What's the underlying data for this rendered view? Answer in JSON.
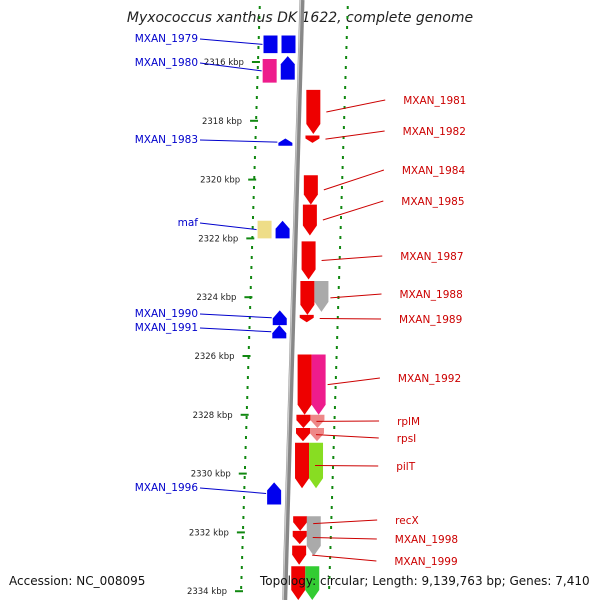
{
  "title": "Myxococcus xanthus DK 1622, complete genome",
  "footer": {
    "accession": "Accession: NC_008095",
    "topology": "Topology: circular; Length: 9,139,763 bp; Genes: 7,410"
  },
  "scale": {
    "unit": "kbp",
    "ticks": [
      {
        "kbp": 2316,
        "label": "2316 kbp"
      },
      {
        "kbp": 2318,
        "label": "2318 kbp"
      },
      {
        "kbp": 2320,
        "label": "2320 kbp"
      },
      {
        "kbp": 2322,
        "label": "2322 kbp"
      },
      {
        "kbp": 2324,
        "label": "2324 kbp"
      },
      {
        "kbp": 2326,
        "label": "2326 kbp"
      },
      {
        "kbp": 2328,
        "label": "2328 kbp"
      },
      {
        "kbp": 2330,
        "label": "2330 kbp"
      },
      {
        "kbp": 2332,
        "label": "2332 kbp"
      },
      {
        "kbp": 2334,
        "label": "2334 kbp"
      }
    ]
  },
  "colors": {
    "reverse_label": "#0000cc",
    "forward_label": "#cc0000",
    "backbone": "#888888",
    "dots": "#118811"
  },
  "genes_reverse": [
    {
      "name": "MXAN_1979",
      "start": 2315.1,
      "end": 2315.7,
      "color": "#0000ee",
      "shape": "box",
      "track": "outer"
    },
    {
      "name": "MXAN_1980",
      "start": 2315.9,
      "end": 2316.7,
      "color": "#ee1c8c",
      "shape": "box",
      "track": "outer"
    },
    {
      "name": "",
      "start": 2315.1,
      "end": 2315.7,
      "color": "#0000ee",
      "shape": "box",
      "track": "inner"
    },
    {
      "name": "",
      "start": 2315.8,
      "end": 2316.6,
      "color": "#0000ee",
      "shape": "arrow",
      "track": "inner"
    },
    {
      "name": "MXAN_1983",
      "start": 2318.6,
      "end": 2318.85,
      "color": "#0000ee",
      "shape": "arrow",
      "track": "inner"
    },
    {
      "name": "maf",
      "start": 2321.4,
      "end": 2322.0,
      "color": "#eedd88",
      "shape": "box",
      "track": "outer"
    },
    {
      "name": "",
      "start": 2321.4,
      "end": 2322.0,
      "color": "#0000ee",
      "shape": "arrow",
      "track": "inner"
    },
    {
      "name": "MXAN_1990",
      "start": 2324.45,
      "end": 2324.95,
      "color": "#0000ee",
      "shape": "arrow",
      "track": "inner"
    },
    {
      "name": "MXAN_1991",
      "start": 2324.95,
      "end": 2325.4,
      "color": "#0000ee",
      "shape": "arrow",
      "track": "inner"
    },
    {
      "name": "MXAN_1996",
      "start": 2330.3,
      "end": 2331.05,
      "color": "#0000ee",
      "shape": "arrow",
      "track": "inner"
    }
  ],
  "genes_forward": [
    {
      "name": "MXAN_1981",
      "start": 2316.95,
      "end": 2318.45,
      "color": "#ee0000",
      "track": "inner"
    },
    {
      "name": "MXAN_1982",
      "start": 2318.5,
      "end": 2318.75,
      "color": "#ee0000",
      "track": "inner"
    },
    {
      "name": "MXAN_1984",
      "start": 2319.85,
      "end": 2320.85,
      "color": "#ee0000",
      "track": "inner"
    },
    {
      "name": "MXAN_1985",
      "start": 2320.85,
      "end": 2321.9,
      "color": "#ee0000",
      "track": "inner"
    },
    {
      "name": "MXAN_1987",
      "start": 2322.1,
      "end": 2323.4,
      "color": "#ee0000",
      "track": "inner"
    },
    {
      "name": "MXAN_1988",
      "start": 2323.45,
      "end": 2324.6,
      "color": "#ee0000",
      "track": "inner"
    },
    {
      "name": "",
      "start": 2323.45,
      "end": 2324.5,
      "color": "#aaaaaa",
      "track": "outer"
    },
    {
      "name": "MXAN_1989",
      "start": 2324.6,
      "end": 2324.85,
      "color": "#ee0000",
      "track": "inner"
    },
    {
      "name": "MXAN_1992",
      "start": 2325.95,
      "end": 2328.0,
      "color": "#ee0000",
      "track": "inner"
    },
    {
      "name": "",
      "start": 2325.95,
      "end": 2328.0,
      "color": "#ee1c8c",
      "track": "outer"
    },
    {
      "name": "rplM",
      "start": 2328.0,
      "end": 2328.45,
      "color": "#ee0000",
      "track": "inner"
    },
    {
      "name": "",
      "start": 2328.0,
      "end": 2328.45,
      "color": "#ee8888",
      "track": "outer"
    },
    {
      "name": "rpsI",
      "start": 2328.45,
      "end": 2328.9,
      "color": "#ee0000",
      "track": "inner"
    },
    {
      "name": "",
      "start": 2328.45,
      "end": 2328.9,
      "color": "#ee8888",
      "track": "outer"
    },
    {
      "name": "pilT",
      "start": 2328.95,
      "end": 2330.5,
      "color": "#ee0000",
      "track": "inner"
    },
    {
      "name": "",
      "start": 2328.95,
      "end": 2330.5,
      "color": "#88dd22",
      "track": "outer"
    },
    {
      "name": "recX",
      "start": 2331.45,
      "end": 2331.95,
      "color": "#ee0000",
      "track": "inner"
    },
    {
      "name": "",
      "start": 2331.45,
      "end": 2332.8,
      "color": "#aaaaaa",
      "track": "outer"
    },
    {
      "name": "MXAN_1998",
      "start": 2331.95,
      "end": 2332.4,
      "color": "#ee0000",
      "track": "inner"
    },
    {
      "name": "MXAN_1999",
      "start": 2332.45,
      "end": 2333.1,
      "color": "#ee0000",
      "track": "inner"
    },
    {
      "name": "",
      "start": 2333.15,
      "end": 2334.3,
      "color": "#ee0000",
      "track": "inner"
    },
    {
      "name": "",
      "start": 2333.15,
      "end": 2334.3,
      "color": "#33cc33",
      "track": "outer"
    }
  ],
  "forward_label_order": [
    "MXAN_1981",
    "MXAN_1982",
    "MXAN_1984",
    "MXAN_1985",
    "MXAN_1987",
    "MXAN_1988",
    "MXAN_1989",
    "MXAN_1992",
    "rplM",
    "rpsI",
    "pilT",
    "recX",
    "MXAN_1998",
    "MXAN_1999"
  ],
  "reverse_label_order": [
    "MXAN_1979",
    "MXAN_1980",
    "MXAN_1983",
    "maf",
    "MXAN_1990",
    "MXAN_1991",
    "MXAN_1996"
  ]
}
